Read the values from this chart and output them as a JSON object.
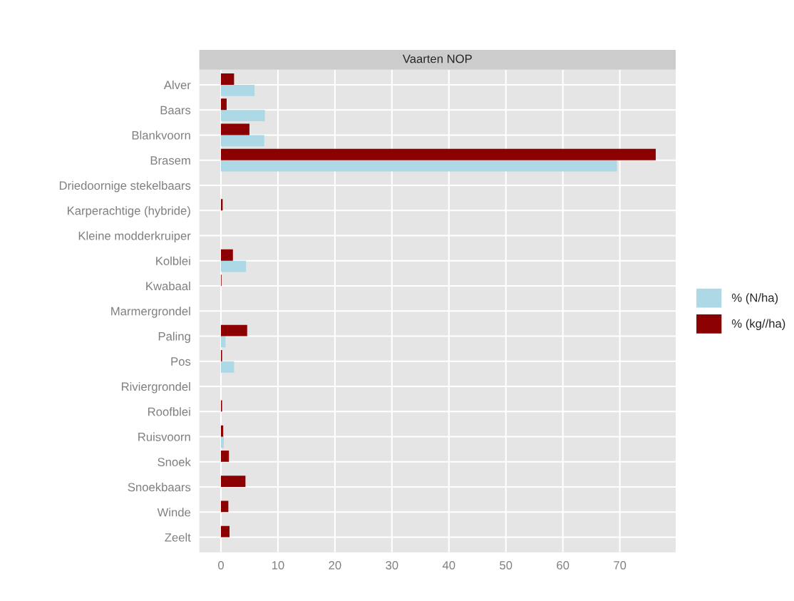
{
  "chart_data": {
    "type": "bar",
    "orientation": "horizontal",
    "title": "Vaarten NOP",
    "categories": [
      "Alver",
      "Baars",
      "Blankvoorn",
      "Brasem",
      "Driedoornige stekelbaars",
      "Karperachtige (hybride)",
      "Kleine modderkruiper",
      "Kolblei",
      "Kwabaal",
      "Marmergrondel",
      "Paling",
      "Pos",
      "Riviergrondel",
      "Roofblei",
      "Ruisvoorn",
      "Snoek",
      "Snoekbaars",
      "Winde",
      "Zeelt"
    ],
    "series": [
      {
        "name": "% (N/ha)",
        "color": "#add8e6",
        "values": [
          5.9,
          7.7,
          7.6,
          69.5,
          null,
          null,
          0,
          4.4,
          0,
          null,
          0.8,
          2.3,
          0,
          0,
          0.5,
          0,
          0,
          0,
          null
        ]
      },
      {
        "name": "% (kg//ha)",
        "color": "#8b0000",
        "values": [
          2.3,
          1.0,
          5.0,
          76.3,
          0,
          0.3,
          0,
          2.1,
          0.1,
          0,
          4.6,
          0.2,
          0,
          0.2,
          0.4,
          1.4,
          4.3,
          1.3,
          1.5
        ]
      }
    ],
    "xlim": [
      -3.8,
      79.8
    ],
    "xticks": [
      0,
      10,
      20,
      30,
      40,
      50,
      60,
      70
    ],
    "grid": true,
    "legend": "right"
  }
}
